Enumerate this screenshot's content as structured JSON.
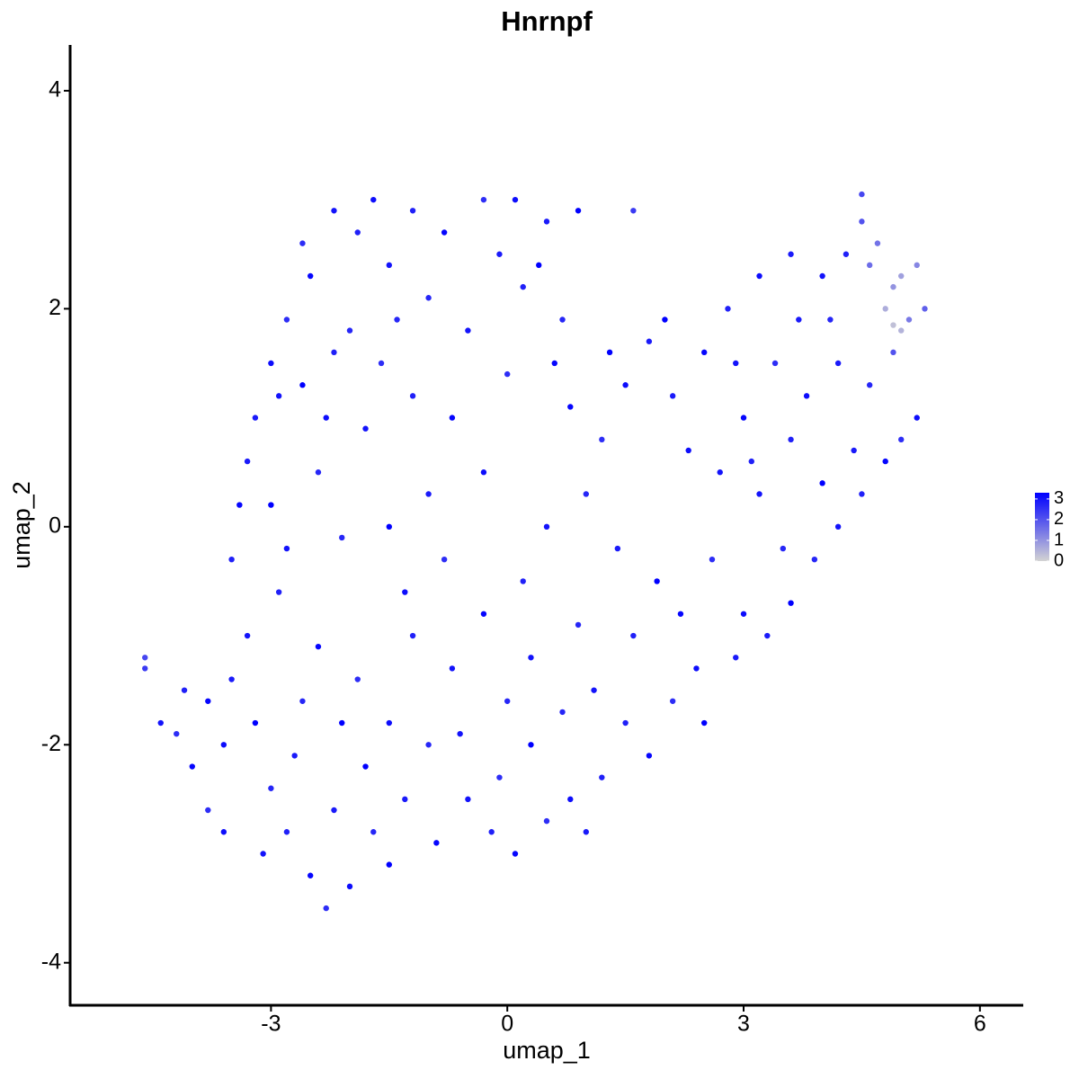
{
  "chart_data": {
    "type": "scatter",
    "title": "Hnrnpf",
    "x_label": "umap_1",
    "y_label": "umap_2",
    "xlim": [
      -5.55,
      6.55
    ],
    "ylim": [
      -4.39,
      4.42
    ],
    "xticks": [
      -3,
      0,
      3,
      6
    ],
    "yticks": [
      -4,
      -2,
      0,
      2,
      4
    ],
    "color_low": "#d3d3d3",
    "color_high": "#0000ff",
    "colorlim": [
      0,
      3.3
    ],
    "color_ticks": [
      0,
      1,
      2,
      3
    ],
    "x": [
      -2.2,
      -1.9,
      -2.5,
      -2.8,
      -3.0,
      -3.2,
      -2.6,
      -2.0,
      -1.5,
      -1.2,
      -0.8,
      -0.3,
      0.1,
      0.5,
      0.9,
      -1.0,
      -0.5,
      0.2,
      0.6,
      -1.6,
      -2.3,
      -3.3,
      -3.0,
      -2.4,
      -1.8,
      -1.2,
      -0.7,
      0.0,
      -0.3,
      -1.0,
      -1.5,
      -2.1,
      -2.8,
      -3.5,
      -3.4,
      -2.6,
      -1.7,
      -0.1,
      0.4,
      -1.4,
      -2.9,
      -2.2,
      0.8,
      1.2,
      1.5,
      1.8,
      2.0,
      1.0,
      0.5,
      0.2,
      -0.3,
      -0.8,
      -1.3,
      1.4,
      1.9,
      0.9,
      0.3,
      1.6,
      2.2,
      2.6,
      2.3,
      2.1,
      1.3,
      0.7,
      -4.6,
      -4.6,
      -4.4,
      -4.1,
      -4.0,
      -3.8,
      -3.6,
      -3.5,
      -3.2,
      -3.0,
      -3.1,
      -2.8,
      -2.5,
      -2.3,
      -2.0,
      -2.2,
      -1.8,
      -2.6,
      -3.3,
      -2.9,
      -2.4,
      -1.9,
      -1.5,
      -1.3,
      -1.5,
      -1.0,
      -0.7,
      -1.2,
      -3.8,
      -4.2,
      -3.6,
      -2.7,
      -2.1,
      -1.7,
      -0.5,
      -0.2,
      0.1,
      0.5,
      0.8,
      1.0,
      0.3,
      0.7,
      1.1,
      1.5,
      1.8,
      2.1,
      2.4,
      2.9,
      2.5,
      0.0,
      -0.6,
      1.2,
      -0.9,
      -0.1,
      3.0,
      3.3,
      3.6,
      3.9,
      4.2,
      4.5,
      4.8,
      5.0,
      5.2,
      4.4,
      4.0,
      3.5,
      3.2,
      3.6,
      3.0,
      3.4,
      3.8,
      4.2,
      4.6,
      4.9,
      5.1,
      5.3,
      5.2,
      4.9,
      4.7,
      4.5,
      4.5,
      4.3,
      4.0,
      3.6,
      3.2,
      2.8,
      2.5,
      2.9,
      3.7,
      4.1,
      4.8,
      5.0,
      4.6,
      4.9,
      5.0,
      2.7,
      3.1,
      1.6
    ],
    "y": [
      2.9,
      2.7,
      2.3,
      1.9,
      1.5,
      1.0,
      1.3,
      1.8,
      2.4,
      2.9,
      2.7,
      3.0,
      3.0,
      2.8,
      2.9,
      2.1,
      1.8,
      2.2,
      1.5,
      1.5,
      1.0,
      0.6,
      0.2,
      0.5,
      0.9,
      1.2,
      1.0,
      1.4,
      0.5,
      0.3,
      0.0,
      -0.1,
      -0.2,
      -0.3,
      0.2,
      2.6,
      3.0,
      2.5,
      2.4,
      1.9,
      1.2,
      1.6,
      1.1,
      0.8,
      1.3,
      1.7,
      1.9,
      0.3,
      0.0,
      -0.5,
      -0.8,
      -0.3,
      -0.6,
      -0.2,
      -0.5,
      -0.9,
      -1.2,
      -1.0,
      -0.8,
      -0.3,
      0.7,
      1.2,
      1.6,
      1.9,
      -1.2,
      -1.3,
      -1.8,
      -1.5,
      -2.2,
      -2.6,
      -2.0,
      -1.4,
      -1.8,
      -2.4,
      -3.0,
      -2.8,
      -3.2,
      -3.5,
      -3.3,
      -2.6,
      -2.2,
      -1.6,
      -1.0,
      -0.6,
      -1.1,
      -1.4,
      -1.8,
      -2.5,
      -3.1,
      -2.0,
      -1.3,
      -1.0,
      -1.6,
      -1.9,
      -2.8,
      -2.1,
      -1.8,
      -2.8,
      -2.5,
      -2.8,
      -3.0,
      -2.7,
      -2.5,
      -2.8,
      -2.0,
      -1.7,
      -1.5,
      -1.8,
      -2.1,
      -1.6,
      -1.3,
      -1.2,
      -1.8,
      -1.6,
      -1.9,
      -2.3,
      -2.9,
      -2.3,
      -0.8,
      -1.0,
      -0.7,
      -0.3,
      0.0,
      0.3,
      0.6,
      0.8,
      1.0,
      0.7,
      0.4,
      -0.2,
      0.3,
      0.8,
      1.0,
      1.5,
      1.2,
      1.5,
      1.3,
      1.6,
      1.9,
      2.0,
      2.4,
      2.2,
      2.6,
      2.8,
      3.05,
      2.5,
      2.3,
      2.5,
      2.3,
      2.0,
      1.6,
      1.5,
      1.9,
      1.9,
      2.0,
      2.3,
      2.4,
      1.85,
      1.8,
      0.5,
      0.6,
      2.9
    ],
    "values": [
      3.0,
      2.8,
      3.2,
      2.6,
      3.1,
      2.9,
      3.3,
      2.7,
      3.0,
      2.8,
      3.2,
      2.6,
      3.1,
      2.9,
      3.3,
      2.7,
      3.0,
      2.8,
      3.2,
      2.6,
      3.1,
      2.9,
      3.3,
      2.7,
      3.0,
      2.8,
      3.2,
      2.6,
      3.1,
      2.9,
      3.3,
      2.7,
      3.0,
      2.8,
      3.2,
      2.6,
      3.1,
      2.9,
      3.3,
      2.7,
      3.0,
      2.8,
      3.2,
      2.6,
      3.1,
      2.9,
      3.3,
      2.7,
      3.0,
      2.8,
      3.2,
      2.6,
      3.1,
      2.9,
      3.3,
      2.7,
      3.0,
      2.8,
      3.2,
      2.6,
      3.1,
      2.9,
      3.3,
      2.7,
      2.2,
      2.4,
      3.0,
      2.8,
      3.2,
      2.6,
      3.1,
      2.9,
      3.3,
      2.7,
      3.0,
      2.8,
      3.2,
      2.6,
      3.1,
      2.9,
      3.3,
      2.7,
      3.0,
      2.8,
      3.2,
      2.6,
      3.1,
      2.9,
      3.3,
      2.7,
      3.0,
      2.8,
      3.2,
      2.6,
      3.1,
      2.9,
      3.3,
      2.7,
      3.0,
      2.8,
      3.2,
      2.6,
      3.1,
      2.9,
      3.3,
      2.7,
      3.0,
      2.8,
      3.2,
      2.6,
      3.1,
      2.9,
      3.3,
      2.7,
      3.0,
      2.8,
      3.2,
      2.6,
      3.1,
      2.9,
      3.3,
      2.7,
      3.0,
      2.8,
      3.2,
      2.6,
      3.1,
      2.9,
      3.3,
      2.7,
      3.0,
      2.8,
      3.2,
      2.6,
      3.1,
      2.9,
      2.7,
      2.0,
      1.4,
      1.8,
      1.2,
      1.0,
      1.5,
      2.0,
      2.2,
      2.8,
      3.0,
      2.9,
      3.1,
      2.8,
      3.2,
      3.0,
      2.9,
      2.7,
      0.6,
      0.8,
      1.6,
      0.3,
      0.5,
      3.0,
      2.8,
      2.4
    ]
  }
}
